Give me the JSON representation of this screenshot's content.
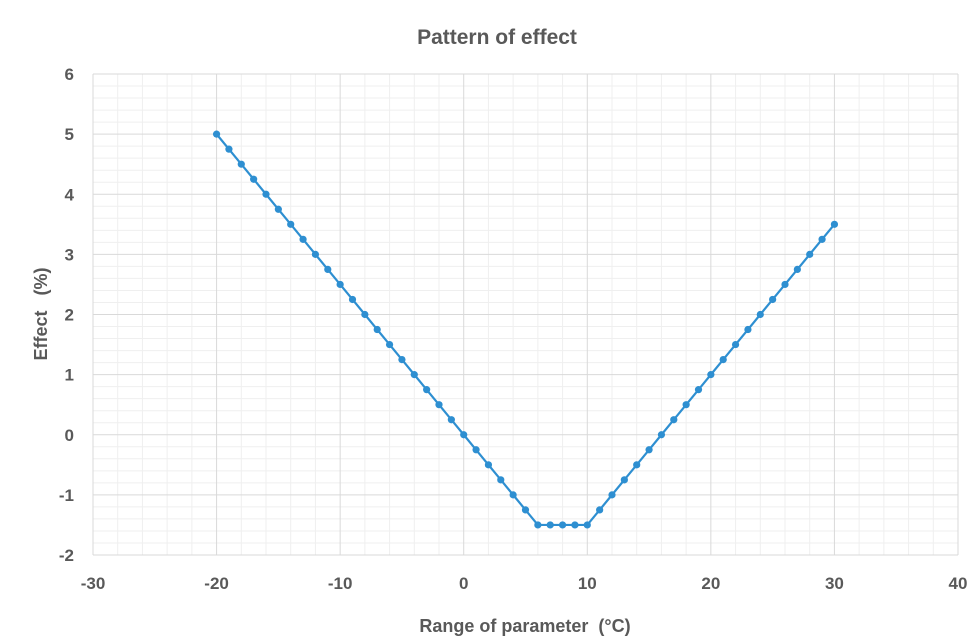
{
  "chart_data": {
    "type": "scatter",
    "title": "Pattern of effect",
    "xlabel": "Range of parameter  (°C)",
    "ylabel": "Effect   (%)",
    "xlim": [
      -30,
      40
    ],
    "ylim": [
      -2,
      6
    ],
    "xticks": [
      -30,
      -20,
      -10,
      0,
      10,
      20,
      30,
      40
    ],
    "yticks": [
      -2,
      -1,
      0,
      1,
      2,
      3,
      4,
      5,
      6
    ],
    "grid": true,
    "legend": "none",
    "colors": {
      "series": "#2e8fd1",
      "major_grid": "#d9d9d9",
      "minor_grid": "#efefef",
      "text": "#595959"
    },
    "series": [
      {
        "x": [
          -20,
          -19,
          -18,
          -17,
          -16,
          -15,
          -14,
          -13,
          -12,
          -11,
          -10,
          -9,
          -8,
          -7,
          -6,
          -5,
          -4,
          -3,
          -2,
          -1,
          0,
          1,
          2,
          3,
          4,
          5,
          6,
          7,
          8,
          9,
          10,
          11,
          12,
          13,
          14,
          15,
          16,
          17,
          18,
          19,
          20,
          21,
          22,
          23,
          24,
          25,
          26,
          27,
          28,
          29,
          30
        ],
        "y": [
          5,
          4.75,
          4.5,
          4.25,
          4,
          3.75,
          3.5,
          3.25,
          3,
          2.75,
          2.5,
          2.25,
          2,
          1.75,
          1.5,
          1.25,
          1,
          0.75,
          0.5,
          0.25,
          0,
          -0.25,
          -0.5,
          -0.75,
          -1,
          -1.25,
          -1.5,
          -1.5,
          -1.5,
          -1.5,
          -1.5,
          -1.25,
          -1,
          -0.75,
          -0.5,
          -0.25,
          0,
          0.25,
          0.5,
          0.75,
          1,
          1.25,
          1.5,
          1.75,
          2,
          2.25,
          2.5,
          2.75,
          3,
          3.25,
          3.5
        ]
      }
    ]
  }
}
